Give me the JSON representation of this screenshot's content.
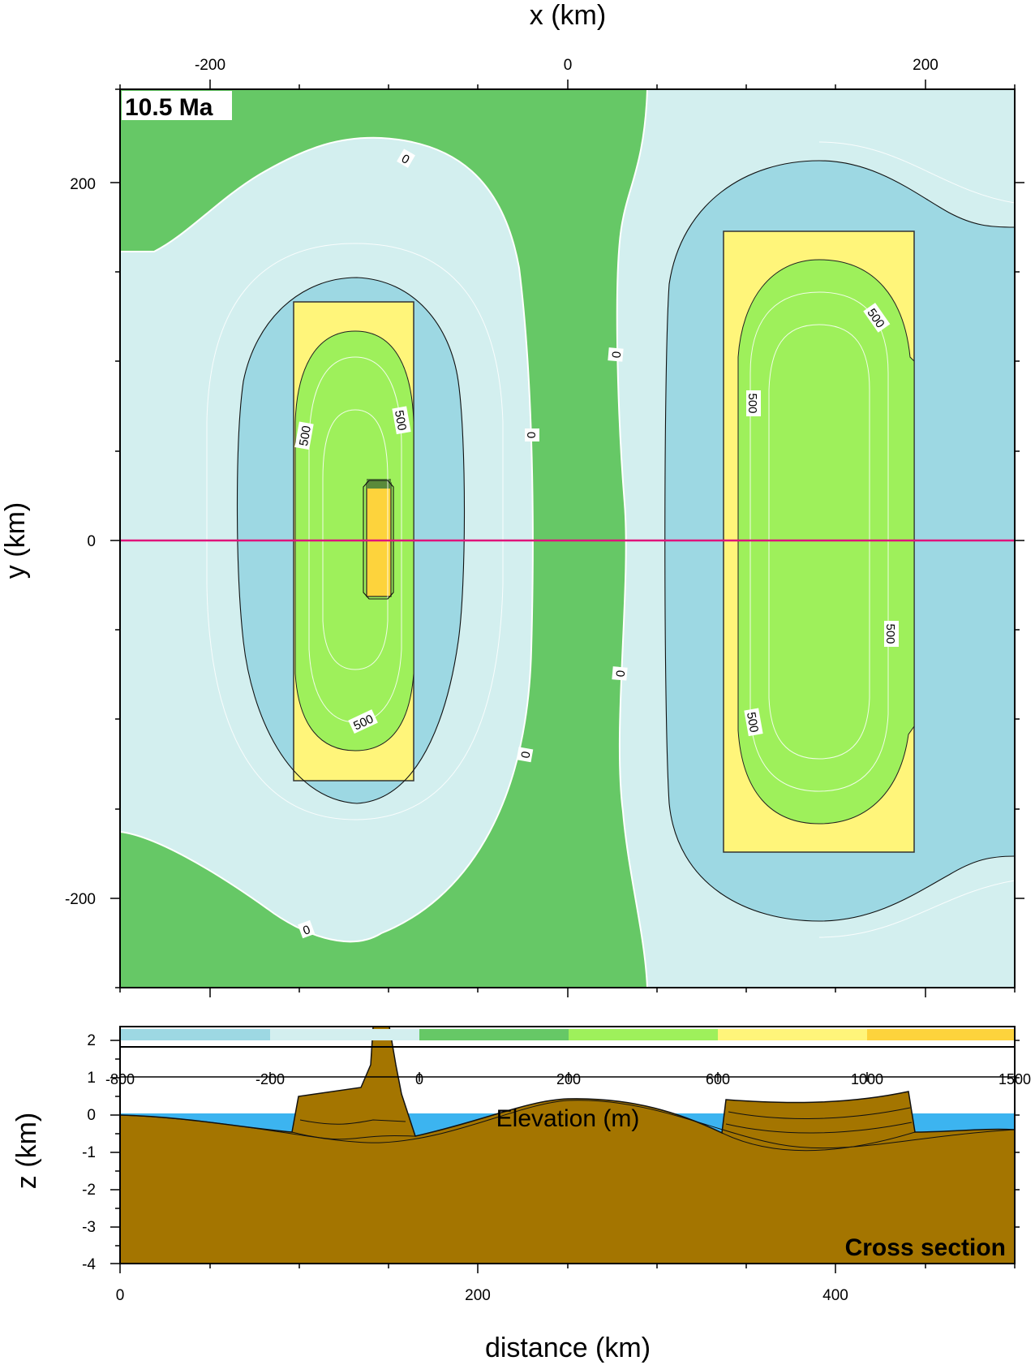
{
  "chart_data": [
    {
      "type": "heatmap",
      "title": "10.5 Ma",
      "xlabel": "x (km)",
      "ylabel": "y (km)",
      "xlim": [
        -250,
        250
      ],
      "ylim": [
        -250,
        250
      ],
      "x_ticks": [
        "-200",
        "0",
        "200"
      ],
      "y_ticks": [
        "200",
        "0",
        "-200"
      ],
      "contour_labels": [
        "0",
        "0",
        "0",
        "0",
        "0",
        "0",
        "500",
        "500",
        "500",
        "500",
        "500",
        "500",
        "500"
      ],
      "profile_line_y": 0
    },
    {
      "type": "area",
      "xlabel": "distance (km)",
      "ylabel": "z (km)",
      "xlim": [
        0,
        500
      ],
      "ylim": [
        -4,
        2
      ],
      "x_ticks": [
        "0",
        "200",
        "400"
      ],
      "y_ticks": [
        "2",
        "1",
        "0",
        "-1",
        "-2",
        "-3",
        "-4"
      ],
      "annotation": "Cross section",
      "colorbar": {
        "label": "Elevation (m)",
        "boundaries": [
          "-800",
          "-200",
          "0",
          "200",
          "600",
          "1000",
          "1500"
        ],
        "colors": [
          "#9dd8e3",
          "#d3efef",
          "#66c866",
          "#9ef05b",
          "#fff57a",
          "#fdd33c"
        ]
      }
    }
  ],
  "colors": {
    "deep_water": "#9dd8e3",
    "shallow_water": "#d3efef",
    "lowland": "#66c866",
    "upland": "#9ef05b",
    "high": "#fff57a",
    "peak": "#fdd33c",
    "sediment": "#a47500",
    "sea": "#3cb4f0",
    "profile_line": "#e0147a"
  }
}
